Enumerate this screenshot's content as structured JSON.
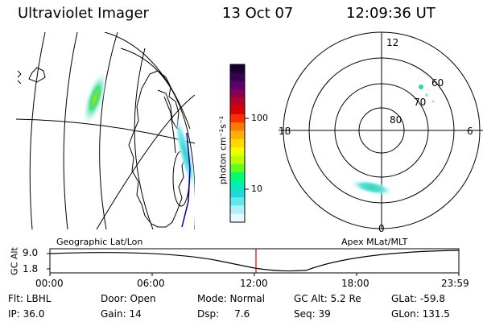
{
  "header": {
    "title": "Ultraviolet Imager",
    "date": "13 Oct 07",
    "time": "12:09:36 UT"
  },
  "colorbar": {
    "unit_label": "photon cm⁻²s⁻¹",
    "ticks": [
      "100",
      "10"
    ],
    "colors": [
      "#1a0030",
      "#3a0050",
      "#5b006e",
      "#8a0050",
      "#b8002a",
      "#d80000",
      "#ff3000",
      "#ff7a00",
      "#ffb000",
      "#ffd800",
      "#f0ff00",
      "#b8ff00",
      "#60ff20",
      "#00ff70",
      "#00f0b0",
      "#20d8d8",
      "#60e8f0",
      "#b0f0f8",
      "#e8f8ff"
    ]
  },
  "polar": {
    "mlt_labels": {
      "top": "12",
      "left": "18",
      "right": "6",
      "bottom": "0"
    },
    "lat_labels": [
      "60",
      "70",
      "80"
    ]
  },
  "map_labels": {
    "left": "Geographic Lat/Lon",
    "right": "Apex MLat/MLT"
  },
  "timeline": {
    "ylabel": "GC Alt",
    "yticks": [
      "9.0",
      "1.8"
    ],
    "xticks": [
      "00:00",
      "06:00",
      "12:00",
      "18:00",
      "23:59"
    ]
  },
  "status": {
    "flt": "Flt: LBHL",
    "ip": "IP: 36.0",
    "door": "Door: Open",
    "gain": "Gain: 14",
    "mode": "Mode: Normal",
    "dsp": "Dsp:     7.6",
    "gcalt": "GC Alt: 5.2 Re",
    "seq": "Seq: 39",
    "glat": "GLat: -59.8",
    "glon": "GLon: 131.5"
  }
}
